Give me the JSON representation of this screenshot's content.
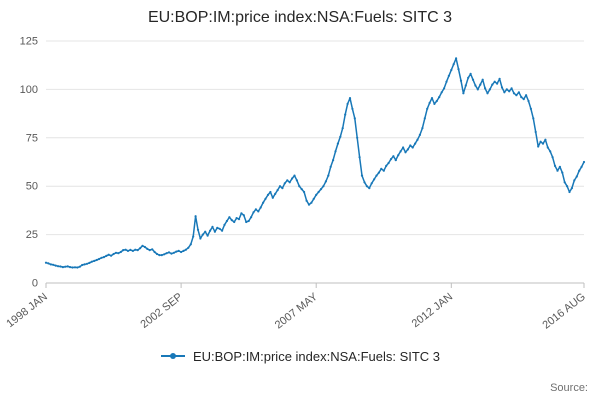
{
  "header": {
    "title": "EU:BOP:IM:price index:NSA:Fuels: SITC 3"
  },
  "legend": {
    "label": "EU:BOP:IM:price index:NSA:Fuels: SITC 3"
  },
  "footer": {
    "source_label": "Source:"
  },
  "chart_data": {
    "type": "line",
    "title": "EU:BOP:IM:price index:NSA:Fuels: SITC 3",
    "frequency": "monthly",
    "x_start": "1998 JAN",
    "x_end": "2016 AUG",
    "ylim": [
      0,
      125
    ],
    "yticks": [
      0,
      25,
      50,
      75,
      100,
      125
    ],
    "xticks": [
      {
        "index": 0,
        "label": "1998 JAN"
      },
      {
        "index": 56,
        "label": "2002 SEP"
      },
      {
        "index": 112,
        "label": "2007 MAY"
      },
      {
        "index": 168,
        "label": "2012 JAN"
      },
      {
        "index": 223,
        "label": "2016 AUG"
      }
    ],
    "color": "#1878b8",
    "grid": true,
    "legend_position": "bottom",
    "series": [
      {
        "name": "EU:BOP:IM:price index:NSA:Fuels: SITC 3",
        "values": [
          10.5,
          10.1,
          9.6,
          9.4,
          9.0,
          8.7,
          8.5,
          8.2,
          8.4,
          8.6,
          8.2,
          8.0,
          8.1,
          8.0,
          8.4,
          9.3,
          9.6,
          9.9,
          10.4,
          11.0,
          11.4,
          11.9,
          12.4,
          13.0,
          13.4,
          14.0,
          14.6,
          14.1,
          15.0,
          15.6,
          15.4,
          16.0,
          17.0,
          17.2,
          16.6,
          17.1,
          16.6,
          17.2,
          17.0,
          18.0,
          19.2,
          18.6,
          17.6,
          17.0,
          17.4,
          16.0,
          15.0,
          14.4,
          14.4,
          14.8,
          15.4,
          15.8,
          15.2,
          15.6,
          16.2,
          16.6,
          16.0,
          16.6,
          17.2,
          18.2,
          20.0,
          24.0,
          34.5,
          27.5,
          23.0,
          25.0,
          26.5,
          24.5,
          27.0,
          29.0,
          26.5,
          28.5,
          28.0,
          27.0,
          30.0,
          32.0,
          34.0,
          32.5,
          31.5,
          33.5,
          33.0,
          36.0,
          35.0,
          31.5,
          32.0,
          34.0,
          36.5,
          38.0,
          37.0,
          39.0,
          41.5,
          43.5,
          45.5,
          47.0,
          44.0,
          46.0,
          48.0,
          50.0,
          49.0,
          51.5,
          53.0,
          52.0,
          54.0,
          55.5,
          53.0,
          50.0,
          48.5,
          47.0,
          42.5,
          40.5,
          41.5,
          43.5,
          45.5,
          47.0,
          48.5,
          50.0,
          52.5,
          55.5,
          60.0,
          63.5,
          68.0,
          72.0,
          75.5,
          80.0,
          87.0,
          92.5,
          95.5,
          90.0,
          85.0,
          75.0,
          65.0,
          55.5,
          52.0,
          50.0,
          49.0,
          51.5,
          53.5,
          55.5,
          57.0,
          59.0,
          58.0,
          60.5,
          62.0,
          64.0,
          65.5,
          63.5,
          66.0,
          68.0,
          70.0,
          67.5,
          69.0,
          71.0,
          70.0,
          72.0,
          74.0,
          76.5,
          80.0,
          85.0,
          90.0,
          93.0,
          95.5,
          92.5,
          94.0,
          96.0,
          98.5,
          100.5,
          104.0,
          107.0,
          110.0,
          113.0,
          116.0,
          110.5,
          104.5,
          98.0,
          102.0,
          106.0,
          108.0,
          105.0,
          102.0,
          100.0,
          102.5,
          105.0,
          100.5,
          98.0,
          100.0,
          102.5,
          104.0,
          103.0,
          105.5,
          101.0,
          98.5,
          100.0,
          99.0,
          100.5,
          98.0,
          97.0,
          98.5,
          96.0,
          95.0,
          97.0,
          94.0,
          90.0,
          85.0,
          78.0,
          70.5,
          73.0,
          72.0,
          74.0,
          70.0,
          68.0,
          65.0,
          60.5,
          58.0,
          60.0,
          57.0,
          52.0,
          50.0,
          47.0,
          49.0,
          53.0,
          55.0,
          58.0,
          60.0,
          62.5
        ]
      }
    ]
  }
}
